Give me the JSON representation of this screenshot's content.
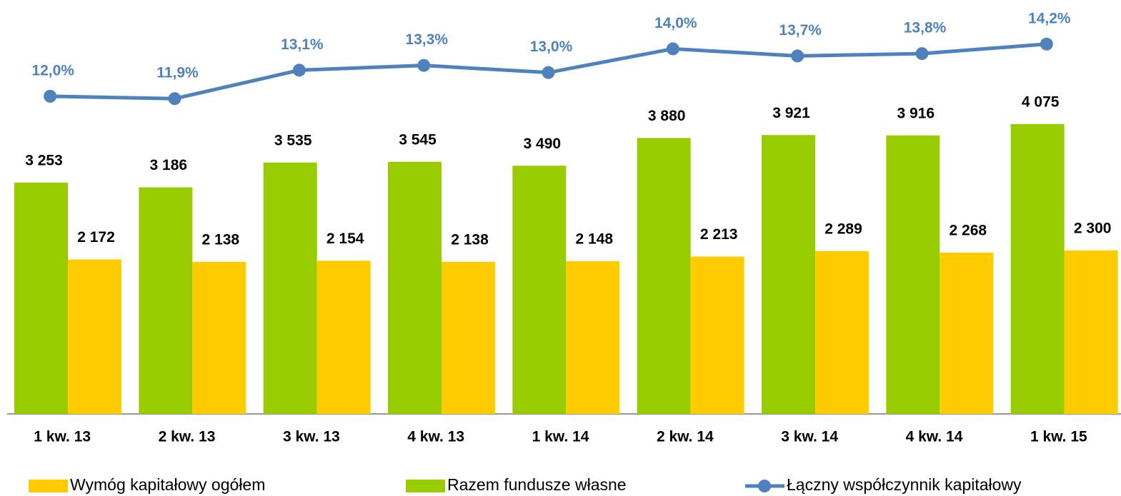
{
  "chart_data": {
    "type": "bar",
    "categories": [
      "1 kw. 13",
      "2 kw. 13",
      "3 kw. 13",
      "4 kw. 13",
      "1 kw. 14",
      "2 kw. 14",
      "3 kw. 14",
      "4 kw. 14",
      "1 kw. 15"
    ],
    "ylim": [
      0,
      5800
    ],
    "y2lim": [
      -1.4,
      16
    ],
    "series": [
      {
        "name": "Razem fundusze własne",
        "color": "#99cc00",
        "type": "bar",
        "values": [
          3253,
          3186,
          3535,
          3545,
          3490,
          3880,
          3921,
          3916,
          4075
        ],
        "value_labels": [
          "3 253",
          "3 186",
          "3 535",
          "3 545",
          "3 490",
          "3 880",
          "3 921",
          "3 916",
          "4 075"
        ]
      },
      {
        "name": "Wymóg kapitałowy ogółem",
        "color": "#ffcc00",
        "type": "bar",
        "values": [
          2172,
          2138,
          2154,
          2138,
          2148,
          2213,
          2289,
          2268,
          2300
        ],
        "value_labels": [
          "2 172",
          "2 138",
          "2 154",
          "2 138",
          "2 148",
          "2 213",
          "2 289",
          "2 268",
          "2 300"
        ]
      },
      {
        "name": "Łączny współczynnik kapitałowy",
        "color": "#4f81bd",
        "type": "line",
        "axis": "y2",
        "values": [
          12.0,
          11.9,
          13.1,
          13.3,
          13.0,
          14.0,
          13.7,
          13.8,
          14.2
        ],
        "value_labels": [
          "12,0%",
          "11,9%",
          "13,1%",
          "13,3%",
          "13,0%",
          "14,0%",
          "13,7%",
          "13,8%",
          "14,2%"
        ]
      }
    ]
  }
}
